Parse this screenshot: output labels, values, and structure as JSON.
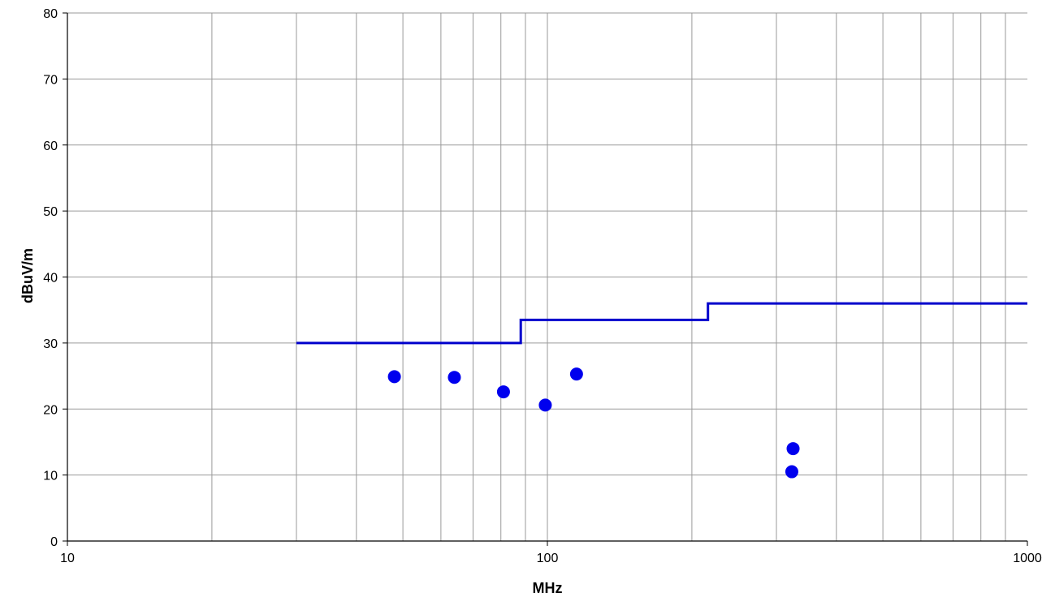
{
  "chart_data": {
    "type": "scatter",
    "title": "",
    "xlabel": "MHz",
    "ylabel": "dBuV/m",
    "x_scale": "log",
    "xlim": [
      10,
      1000
    ],
    "ylim": [
      0,
      80
    ],
    "x_ticks": [
      "10",
      "100",
      "1000"
    ],
    "y_ticks": [
      "0",
      "10",
      "20",
      "30",
      "40",
      "50",
      "60",
      "70",
      "80"
    ],
    "grid": true,
    "legend": "none",
    "series": [
      {
        "kind": "step-line",
        "color": "#0000cc",
        "x": [
          30,
          88,
          88,
          216,
          216,
          1000
        ],
        "y": [
          30,
          30,
          33.5,
          33.5,
          36,
          36
        ]
      },
      {
        "kind": "points",
        "color": "#0000ee",
        "x": [
          48,
          64,
          81,
          99,
          115,
          325,
          323
        ],
        "y": [
          24.9,
          24.8,
          22.6,
          20.6,
          25.3,
          14.0,
          10.5
        ]
      }
    ]
  }
}
